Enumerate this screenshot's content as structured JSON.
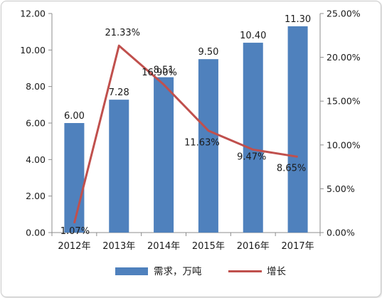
{
  "chart_data": {
    "type": "bar",
    "categories": [
      "2012年",
      "2013年",
      "2014年",
      "2015年",
      "2016年",
      "2017年"
    ],
    "series": [
      {
        "name": "需求，万吨",
        "type": "bar",
        "axis": "left",
        "color": "#4f81bd",
        "values": [
          6.0,
          7.28,
          8.51,
          9.5,
          10.4,
          11.3
        ],
        "labels": [
          "6.00",
          "7.28",
          "8.51",
          "9.50",
          "10.40",
          "11.30"
        ]
      },
      {
        "name": "增长",
        "type": "line",
        "axis": "right",
        "color": "#c0504d",
        "values": [
          1.07,
          21.33,
          16.9,
          11.63,
          9.47,
          8.65
        ],
        "labels": [
          "1.07%",
          "21.33%",
          "16.90%",
          "11.63%",
          "9.47%",
          "8.65%"
        ]
      }
    ],
    "y_left": {
      "ylim": [
        0,
        12
      ],
      "ticks": [
        "0.00",
        "2.00",
        "4.00",
        "6.00",
        "8.00",
        "10.00",
        "12.00"
      ]
    },
    "y_right": {
      "ylim": [
        0,
        25
      ],
      "ticks": [
        "0.00%",
        "5.00%",
        "10.00%",
        "15.00%",
        "20.00%",
        "25.00%"
      ]
    },
    "grid": false,
    "legend": "bottom"
  }
}
